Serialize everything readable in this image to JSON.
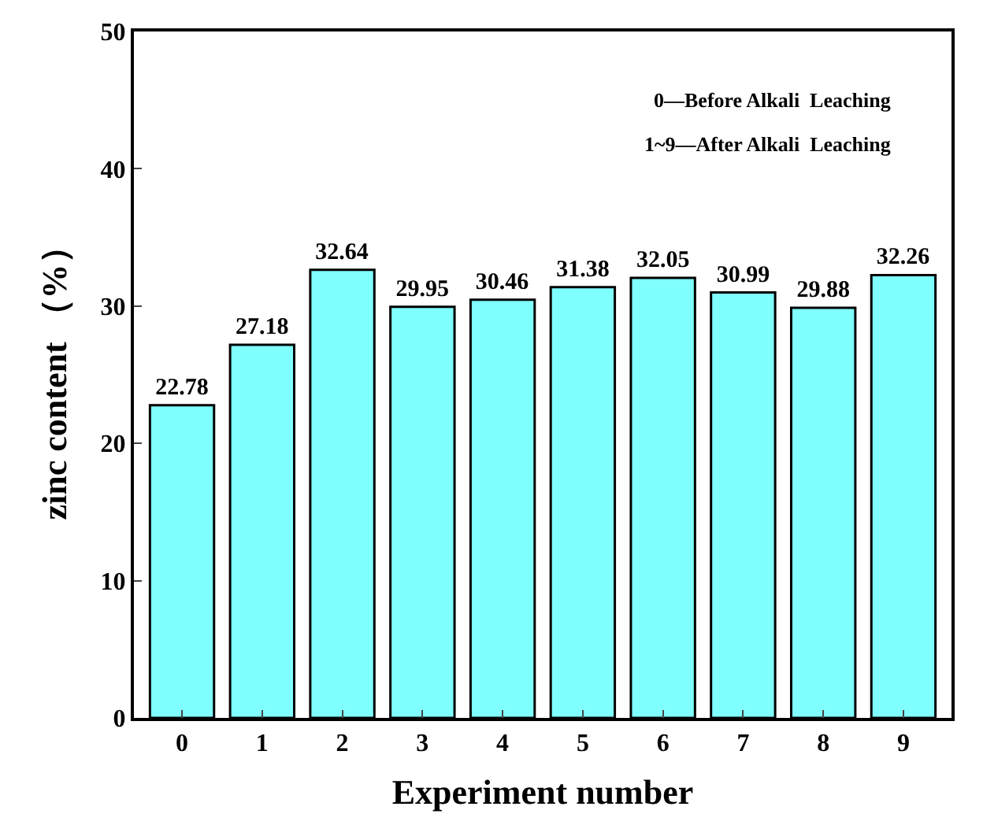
{
  "chart_data": {
    "type": "bar",
    "xlabel": "Experiment number",
    "ylabel": "zinc content （%）",
    "categories": [
      "0",
      "1",
      "2",
      "3",
      "4",
      "5",
      "6",
      "7",
      "8",
      "9"
    ],
    "values": [
      22.78,
      27.18,
      32.64,
      29.95,
      30.46,
      31.38,
      32.05,
      30.99,
      29.88,
      32.26
    ],
    "color": "#80ffff",
    "ylim": [
      0,
      50
    ],
    "yticks": [
      0,
      10,
      20,
      30,
      40,
      50
    ],
    "data_labels": true,
    "annotations": [
      "0—Before Alkali  Leaching",
      "1~9—After Alkali  Leaching"
    ]
  }
}
